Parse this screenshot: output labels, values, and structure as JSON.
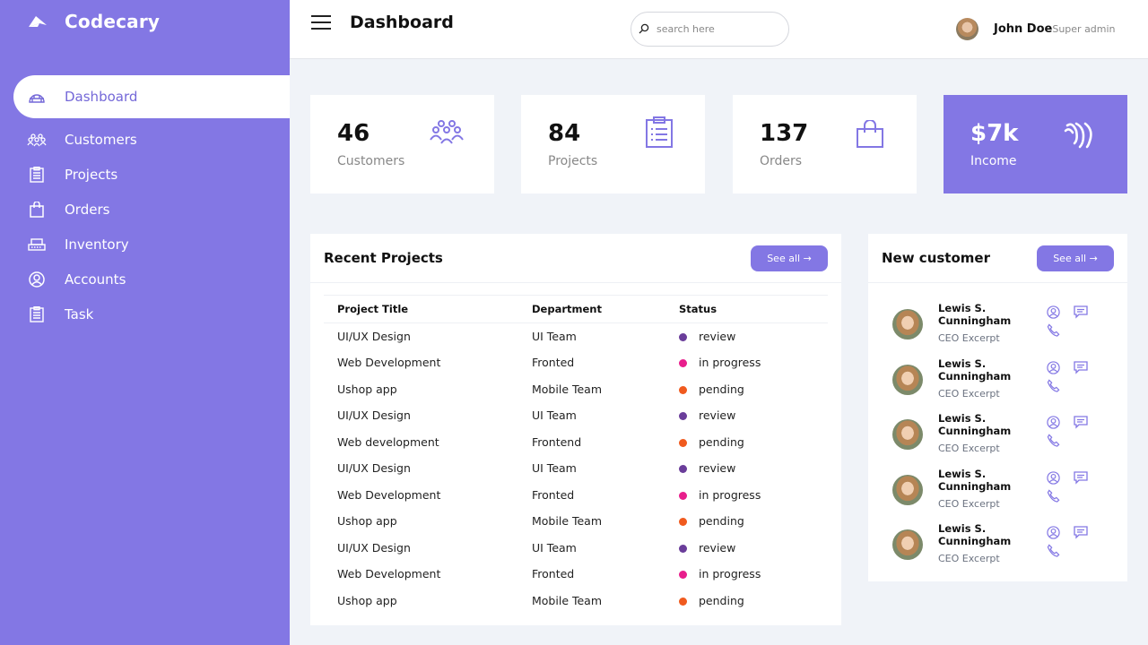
{
  "brand": {
    "name": "Codecary",
    "icon": "logo-icon"
  },
  "sidebar": {
    "items": [
      {
        "label": "Dashboard",
        "icon": "dashboard-icon",
        "active": true
      },
      {
        "label": "Customers",
        "icon": "customers-icon"
      },
      {
        "label": "Projects",
        "icon": "clipboard-icon"
      },
      {
        "label": "Orders",
        "icon": "shopping-bag-icon"
      },
      {
        "label": "Inventory",
        "icon": "inventory-icon"
      },
      {
        "label": "Accounts",
        "icon": "account-circle-icon"
      },
      {
        "label": "Task",
        "icon": "clipboard-icon"
      }
    ]
  },
  "header": {
    "title": "Dashboard",
    "search": {
      "placeholder": "search here",
      "value": ""
    },
    "user": {
      "name": "John Doe",
      "role": "Super admin"
    }
  },
  "cards": [
    {
      "value": "46",
      "label": "Customers",
      "icon": "customers-icon"
    },
    {
      "value": "84",
      "label": "Projects",
      "icon": "clipboard-icon"
    },
    {
      "value": "137",
      "label": "Orders",
      "icon": "shopping-bag-icon"
    },
    {
      "value": "$7k",
      "label": "Income",
      "icon": "income-icon"
    }
  ],
  "colors": {
    "accent": "#8377e4",
    "review": "#6a3d9a",
    "in_progress": "#e81e8c",
    "pending": "#f05a1e"
  },
  "recent_projects": {
    "title": "Recent Projects",
    "see_all_label": "See all →",
    "columns": [
      "Project Title",
      "Department",
      "Status"
    ],
    "rows": [
      {
        "title": "UI/UX Design",
        "department": "UI Team",
        "status": "review"
      },
      {
        "title": "Web Development",
        "department": "Fronted",
        "status": "in progress"
      },
      {
        "title": "Ushop app",
        "department": "Mobile Team",
        "status": "pending"
      },
      {
        "title": "UI/UX Design",
        "department": "UI Team",
        "status": "review"
      },
      {
        "title": "Web development",
        "department": "Frontend",
        "status": "pending"
      },
      {
        "title": "UI/UX Design",
        "department": "UI Team",
        "status": "review"
      },
      {
        "title": "Web Development",
        "department": "Fronted",
        "status": "in progress"
      },
      {
        "title": "Ushop app",
        "department": "Mobile Team",
        "status": "pending"
      },
      {
        "title": "UI/UX Design",
        "department": "UI Team",
        "status": "review"
      },
      {
        "title": "Web Development",
        "department": "Fronted",
        "status": "in progress"
      },
      {
        "title": "Ushop app",
        "department": "Mobile Team",
        "status": "pending"
      }
    ]
  },
  "new_customer": {
    "title": "New customer",
    "see_all_label": "See all →",
    "customers": [
      {
        "name": "Lewis S. Cunningham",
        "role": "CEO Excerpt"
      },
      {
        "name": "Lewis S. Cunningham",
        "role": "CEO Excerpt"
      },
      {
        "name": "Lewis S. Cunningham",
        "role": "CEO Excerpt"
      },
      {
        "name": "Lewis S. Cunningham",
        "role": "CEO Excerpt"
      },
      {
        "name": "Lewis S. Cunningham",
        "role": "CEO Excerpt"
      }
    ]
  }
}
